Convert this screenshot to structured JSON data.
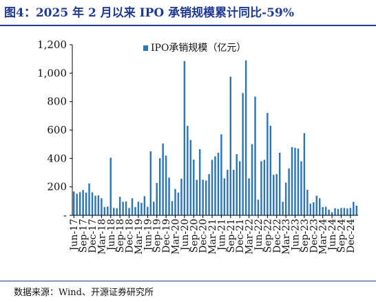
{
  "header": {
    "title": "图4：2025 年 2 月以来 IPO 承销规模累计同比-59%"
  },
  "footer": {
    "source": "数据来源：Wind、开源证券研究所"
  },
  "colors": {
    "bar": "#2e75b6",
    "title": "#1f3a93"
  },
  "chart_data": {
    "type": "bar",
    "series": [
      {
        "name": "IPO承销规模（亿元）",
        "values": [
          168,
          152,
          163,
          178,
          160,
          224,
          162,
          138,
          140,
          120,
          58,
          62,
          405,
          52,
          50,
          130,
          95,
          98,
          52,
          120,
          58,
          96,
          88,
          135,
          60,
          450,
          96,
          228,
          402,
          505,
          420,
          265,
          100,
          185,
          160,
          258,
          1085,
          630,
          530,
          392,
          250,
          465,
          250,
          245,
          290,
          390,
          415,
          440,
          570,
          260,
          320,
          975,
          320,
          430,
          380,
          860,
          1090,
          260,
          500,
          835,
          110,
          380,
          390,
          720,
          630,
          285,
          290,
          440,
          95,
          230,
          330,
          480,
          475,
          470,
          380,
          578,
          180,
          82,
          92,
          138,
          120,
          58,
          60,
          40,
          22,
          50,
          45,
          52,
          52,
          48,
          52,
          95,
          68
        ]
      }
    ],
    "x_tick_labels": [
      "Jun-17",
      "Sep-17",
      "Dec-17",
      "Mar-18",
      "Jun-18",
      "Sep-18",
      "Dec-18",
      "Mar-19",
      "Jun-19",
      "Sep-19",
      "Dec-19",
      "Mar-20",
      "Jun-20",
      "Sep-20",
      "Dec-20",
      "Mar-21",
      "Jun-21",
      "Sep-21",
      "Dec-21",
      "Mar-22",
      "Jun-22",
      "Sep-22",
      "Dec-22",
      "Mar-23",
      "Jun-23",
      "Sep-23",
      "Dec-23",
      "Mar-24",
      "Jun-24",
      "Sep-24",
      "Dec-24"
    ],
    "y_tick_labels": [
      "-",
      "200",
      "400",
      "600",
      "800",
      "1,000",
      "1,200"
    ],
    "ylim": [
      0,
      1200
    ],
    "ystep": 200,
    "grid": false,
    "legend_position": "top-center"
  }
}
